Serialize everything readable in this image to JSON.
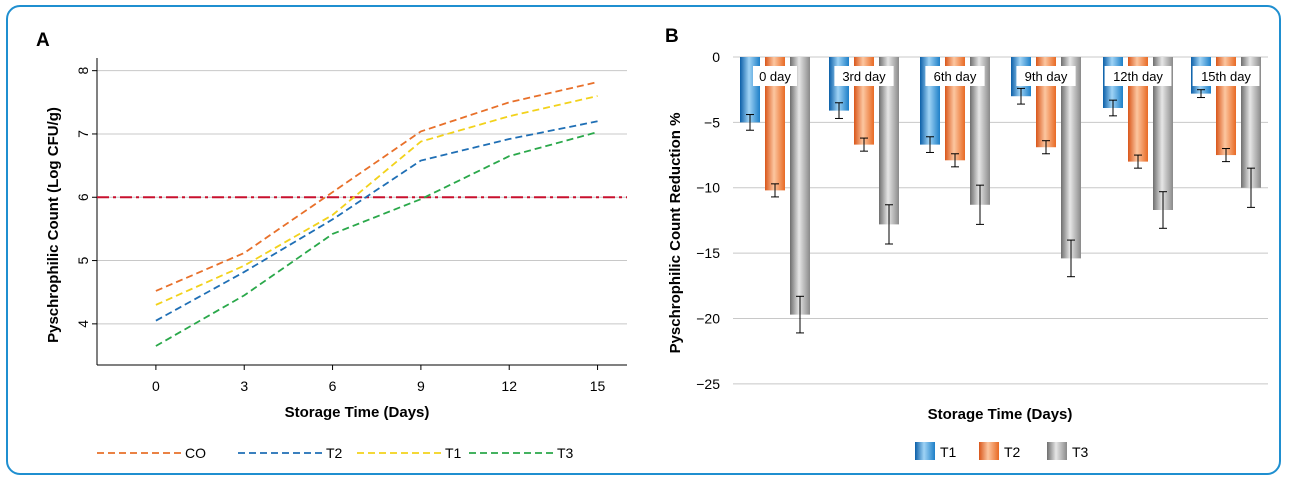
{
  "panels": {
    "a": {
      "letter": "A",
      "chart_data": {
        "type": "line",
        "xlabel": "Storage Time (Days)",
        "ylabel": "Pyschrophilic Count (Log CFU/g)",
        "x": [
          0,
          3,
          6,
          9,
          12,
          15
        ],
        "x_ticks": [
          "0",
          "3",
          "6",
          "9",
          "12",
          "15"
        ],
        "xlim": [
          -2,
          16
        ],
        "ylim": [
          3.35,
          8.2
        ],
        "y_ticks": [
          "4",
          "5",
          "6",
          "7",
          "8"
        ],
        "grid": true,
        "legend_position": "bottom",
        "reference_line": {
          "y": 6,
          "style": "dash-dot",
          "color": "#c8102e"
        },
        "series": [
          {
            "name": "CO",
            "color": "#e8702a",
            "values": [
              4.52,
              5.12,
              6.08,
              7.04,
              7.5,
              7.82
            ]
          },
          {
            "name": "T2",
            "color": "#1f6fb5",
            "values": [
              4.05,
              4.82,
              5.65,
              6.58,
              6.92,
              7.2
            ]
          },
          {
            "name": "T1",
            "color": "#f2d21b",
            "values": [
              4.3,
              4.92,
              5.72,
              6.88,
              7.28,
              7.6
            ]
          },
          {
            "name": "T3",
            "color": "#2aa84a",
            "values": [
              3.65,
              4.45,
              5.42,
              5.97,
              6.65,
              7.03
            ]
          }
        ]
      }
    },
    "b": {
      "letter": "B",
      "chart_data": {
        "type": "bar",
        "xlabel": "Storage Time (Days)",
        "ylabel": "Pyschrophilic Count Reduction %",
        "categories": [
          "0 day",
          "3rd day",
          "6th day",
          "9th day",
          "12th day",
          "15th day"
        ],
        "ylim": [
          -26,
          0
        ],
        "y_ticks": [
          "0",
          "−5",
          "−10",
          "−15",
          "−20",
          "−25"
        ],
        "grid": true,
        "legend_position": "bottom",
        "series": [
          {
            "name": "T1",
            "color": "#1d8fd6",
            "values": [
              -5.0,
              -4.1,
              -6.7,
              -3.0,
              -3.9,
              -2.8
            ],
            "errors": [
              0.6,
              0.6,
              0.6,
              0.6,
              0.6,
              0.3
            ]
          },
          {
            "name": "T2",
            "color": "#f07d2e",
            "values": [
              -10.2,
              -6.7,
              -7.9,
              -6.9,
              -8.0,
              -7.5
            ],
            "errors": [
              0.5,
              0.5,
              0.5,
              0.5,
              0.5,
              0.5
            ]
          },
          {
            "name": "T3",
            "color": "#9a9a9a",
            "values": [
              -19.7,
              -12.8,
              -11.3,
              -15.4,
              -11.7,
              -10.0
            ],
            "errors": [
              1.4,
              1.5,
              1.5,
              1.4,
              1.4,
              1.5
            ]
          }
        ]
      }
    }
  }
}
